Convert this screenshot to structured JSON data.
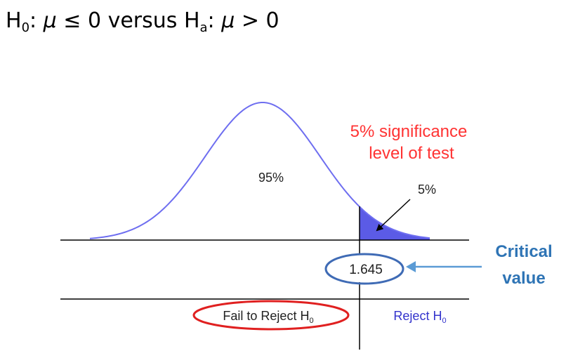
{
  "hypothesis": {
    "h0_letter": "H",
    "h0_sub": "0",
    "h0_rest": ": ",
    "mu": "μ",
    "h0_relation": " ≤  0 versus ",
    "ha_letter": "H",
    "ha_sub": "a",
    "ha_rest": ": ",
    "ha_relation": " > 0"
  },
  "diagram": {
    "center_label": "95%",
    "significance_line1": "5% significance",
    "significance_line2": "level of test",
    "tail_label": "5%",
    "critical_value": "1.645",
    "fail_label": "Fail to Reject H",
    "fail_sub": "0",
    "reject_label": "Reject H",
    "reject_sub": "0",
    "critical_line1": "Critical",
    "critical_line2": "value"
  },
  "colors": {
    "curve": "#6e6ef0",
    "tail_fill": "#5b5be6",
    "significance_text": "#ff3333",
    "ellipse_blue": "#3f6bb5",
    "ellipse_red": "#e02020",
    "arrow_blue": "#5b9bd5",
    "critical_text": "#2e74b5",
    "reject_text": "#3333cc"
  }
}
